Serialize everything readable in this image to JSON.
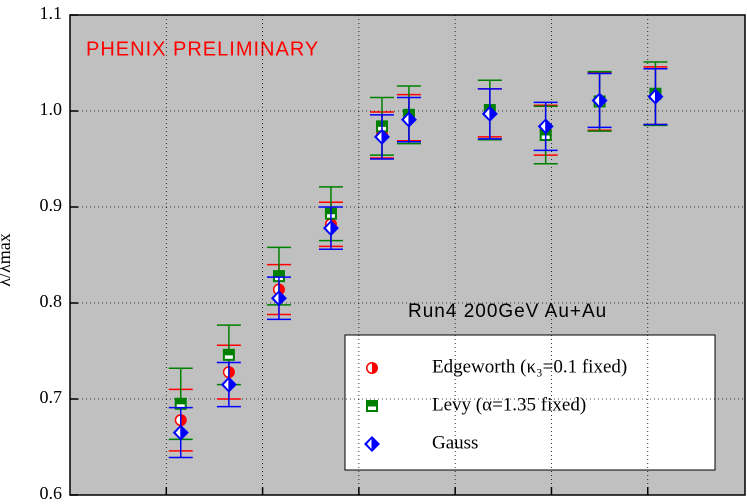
{
  "chart_data": {
    "type": "scatter",
    "y_label": "λ/λmax",
    "annotations": [
      "PHENIX PRELIMINARY",
      "Run4 200GeV Au+Au"
    ],
    "xlim": [
      0,
      7.01
    ],
    "xticks": [
      1,
      2,
      3,
      4,
      5,
      6
    ],
    "ylim": [
      0.6,
      1.1
    ],
    "yticks": [
      0.6,
      0.7,
      0.8,
      0.9,
      {
        "value": 1.0,
        "label": "1.0"
      },
      1.1
    ],
    "grid": true,
    "x": [
      1.15,
      1.65,
      2.17,
      2.71,
      3.24,
      3.52,
      4.36,
      4.94,
      5.5,
      6.08
    ],
    "series": [
      {
        "name": "Edgeworth (κ₃=0.1 fixed)",
        "color": "#ff0000",
        "marker": "circle",
        "values": [
          0.678,
          0.728,
          0.814,
          0.882,
          0.975,
          0.993,
          0.998,
          0.98,
          1.01,
          1.016
        ],
        "errors": [
          0.032,
          0.028,
          0.026,
          0.023,
          0.024,
          0.024,
          0.025,
          0.026,
          0.03,
          0.03
        ]
      },
      {
        "name": "Levy (α=1.35 fixed)",
        "color": "#008000",
        "marker": "square",
        "values": [
          0.695,
          0.746,
          0.828,
          0.893,
          0.984,
          0.996,
          1.001,
          0.975,
          1.01,
          1.018
        ],
        "errors": [
          0.037,
          0.031,
          0.03,
          0.028,
          0.03,
          0.03,
          0.031,
          0.03,
          0.031,
          0.033
        ]
      },
      {
        "name": "Gauss",
        "color": "#0000ff",
        "marker": "diamond",
        "values": [
          0.665,
          0.715,
          0.805,
          0.878,
          0.973,
          0.991,
          0.997,
          0.984,
          1.011,
          1.015
        ],
        "errors": [
          0.026,
          0.023,
          0.022,
          0.022,
          0.023,
          0.023,
          0.026,
          0.025,
          0.028,
          0.029
        ]
      }
    ]
  }
}
